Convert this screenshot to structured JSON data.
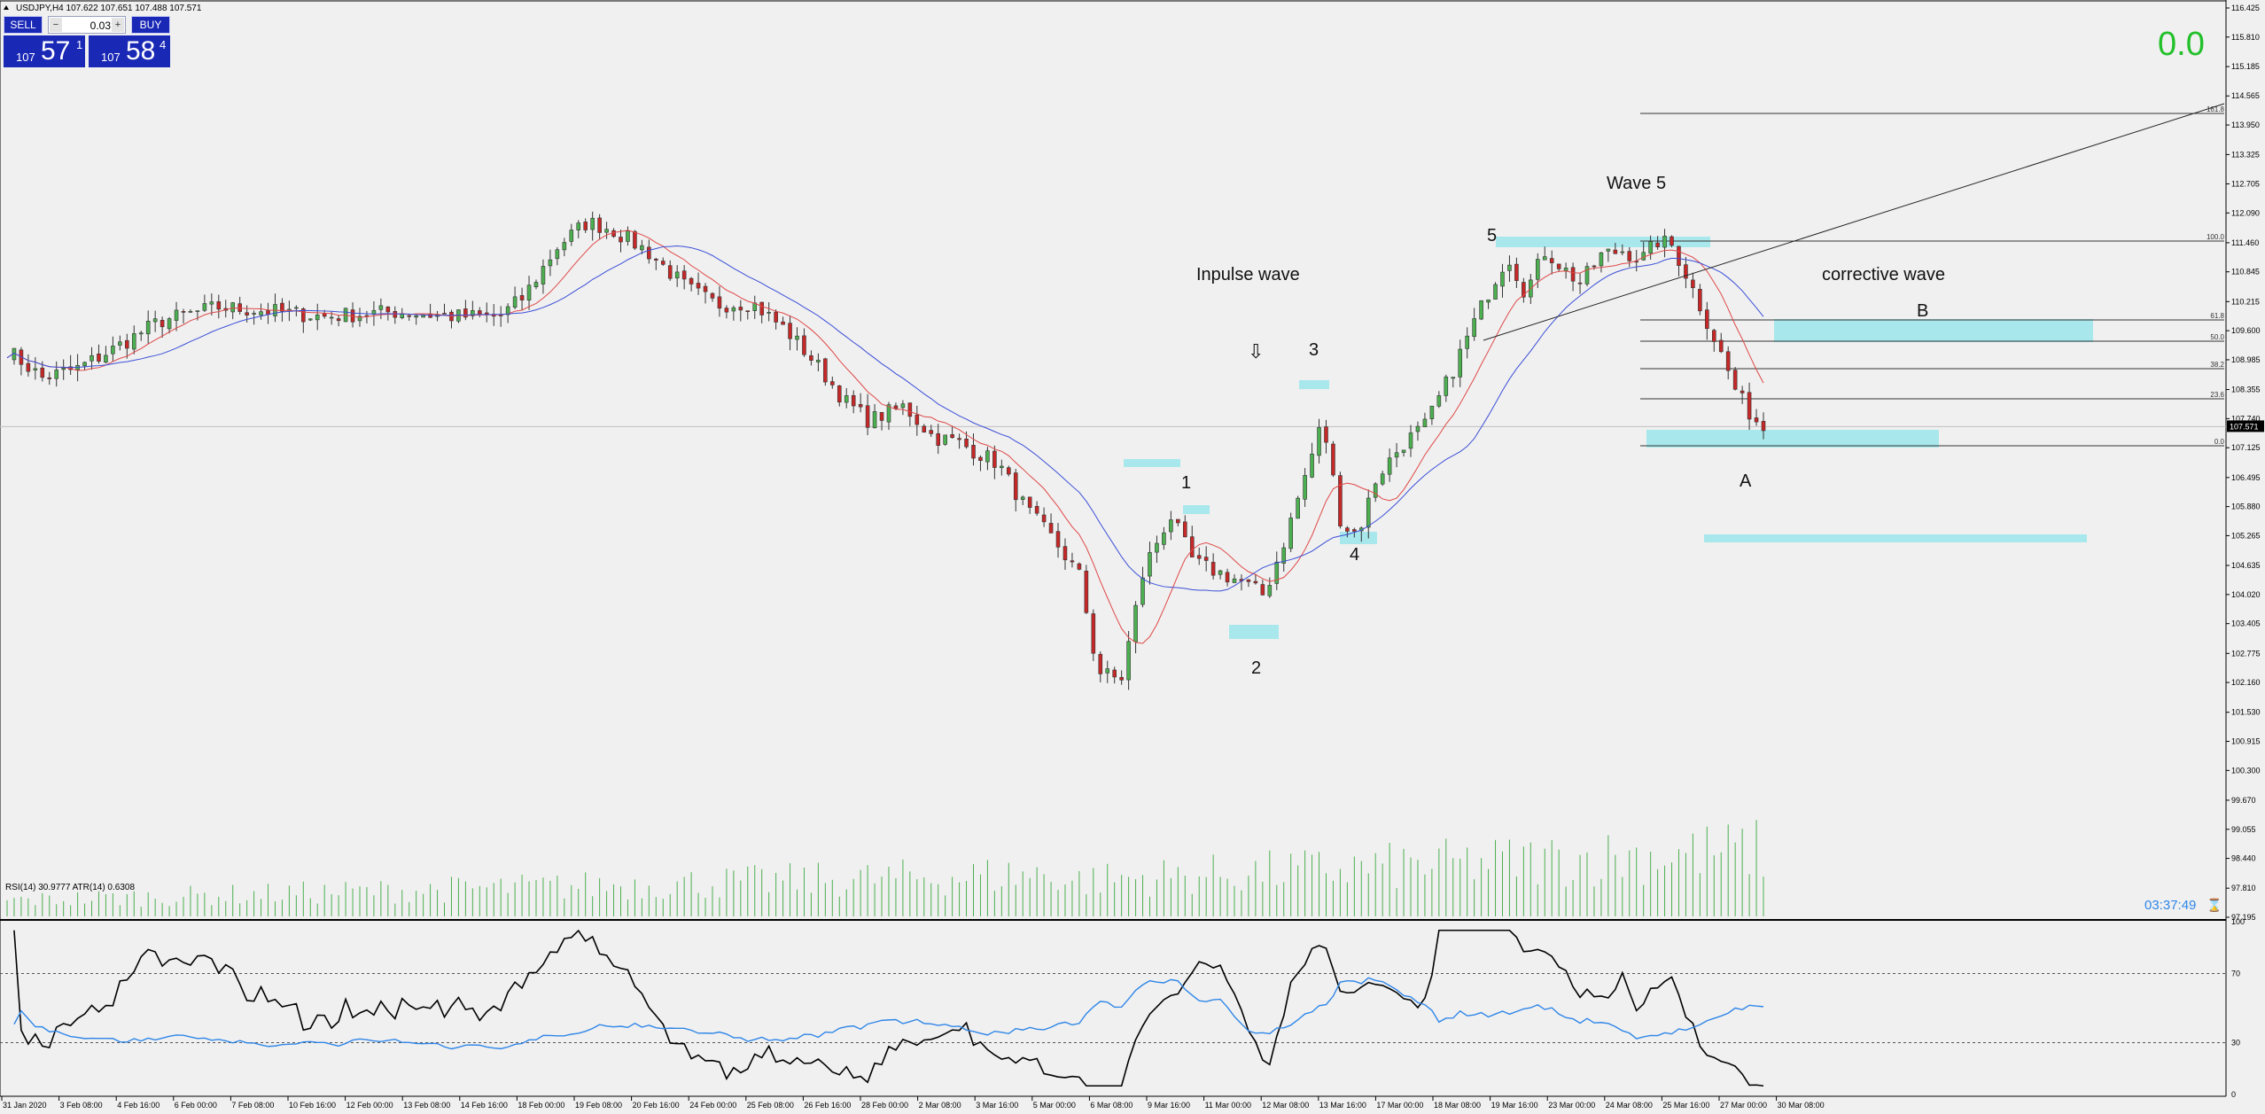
{
  "header": {
    "symbol_line": "USDJPY,H4  107.622 107.651 107.488 107.571",
    "top_right_tag": "",
    "counter": "0.0",
    "timer": "03:37:49"
  },
  "trade_panel": {
    "sell_label": "SELL",
    "buy_label": "BUY",
    "lot_value": "0.03",
    "sell_big": "107",
    "sell_main": "57",
    "sell_sup": "1",
    "buy_big": "107",
    "buy_main": "58",
    "buy_sup": "4"
  },
  "price_axis": {
    "labels": [
      "116.425",
      "115.810",
      "115.185",
      "114.565",
      "113.950",
      "113.325",
      "112.705",
      "112.090",
      "111.460",
      "110.845",
      "110.215",
      "109.600",
      "108.985",
      "108.355",
      "107.740",
      "107.125",
      "106.495",
      "105.880",
      "105.265",
      "104.635",
      "104.020",
      "103.405",
      "102.775",
      "102.160",
      "101.530",
      "100.915",
      "100.300",
      "99.670",
      "99.055",
      "98.440",
      "97.810",
      "97.195"
    ],
    "current_price": "107.571"
  },
  "time_axis": {
    "labels": [
      "31 Jan 2020",
      "3 Feb 08:00",
      "4 Feb 16:00",
      "6 Feb 00:00",
      "7 Feb 08:00",
      "10 Feb 16:00",
      "12 Feb 00:00",
      "13 Feb 08:00",
      "14 Feb 16:00",
      "18 Feb 00:00",
      "19 Feb 08:00",
      "20 Feb 16:00",
      "24 Feb 00:00",
      "25 Feb 08:00",
      "26 Feb 16:00",
      "28 Feb 00:00",
      "2 Mar 08:00",
      "3 Mar 16:00",
      "5 Mar 00:00",
      "6 Mar 08:00",
      "9 Mar 16:00",
      "11 Mar 00:00",
      "12 Mar 08:00",
      "13 Mar 16:00",
      "17 Mar 00:00",
      "18 Mar 08:00",
      "19 Mar 16:00",
      "23 Mar 00:00",
      "24 Mar 08:00",
      "25 Mar 16:00",
      "27 Mar 00:00",
      "30 Mar 08:00"
    ]
  },
  "annotations": {
    "impulse": "Inpulse wave",
    "corrective": "corrective wave",
    "wave5": "Wave 5",
    "w1": "1",
    "w2": "2",
    "w3": "3",
    "w4": "4",
    "w5": "5",
    "wa": "A",
    "wb": "B",
    "arrow": "⇩"
  },
  "fibonacci": {
    "levels": [
      "161.8",
      "100.0",
      "61.8",
      "50.0",
      "38.2",
      "23.6",
      "0.0"
    ]
  },
  "indicator": {
    "title": "RSI(14) 30.9777  ATR(14) 0.6308",
    "axis": [
      "100",
      "70",
      "30",
      "0"
    ]
  },
  "colors": {
    "background": "#f0f0f0",
    "bull": "#4caf50",
    "bear": "#c62828",
    "ma_fast": "#e04848",
    "ma_slow": "#3b4fd8",
    "volume": "#4caf50",
    "zone": "#a8e8ec",
    "rsi": "#000000",
    "atr": "#2f86e8",
    "counter": "#22c02a",
    "timer": "#2f86e8"
  }
}
